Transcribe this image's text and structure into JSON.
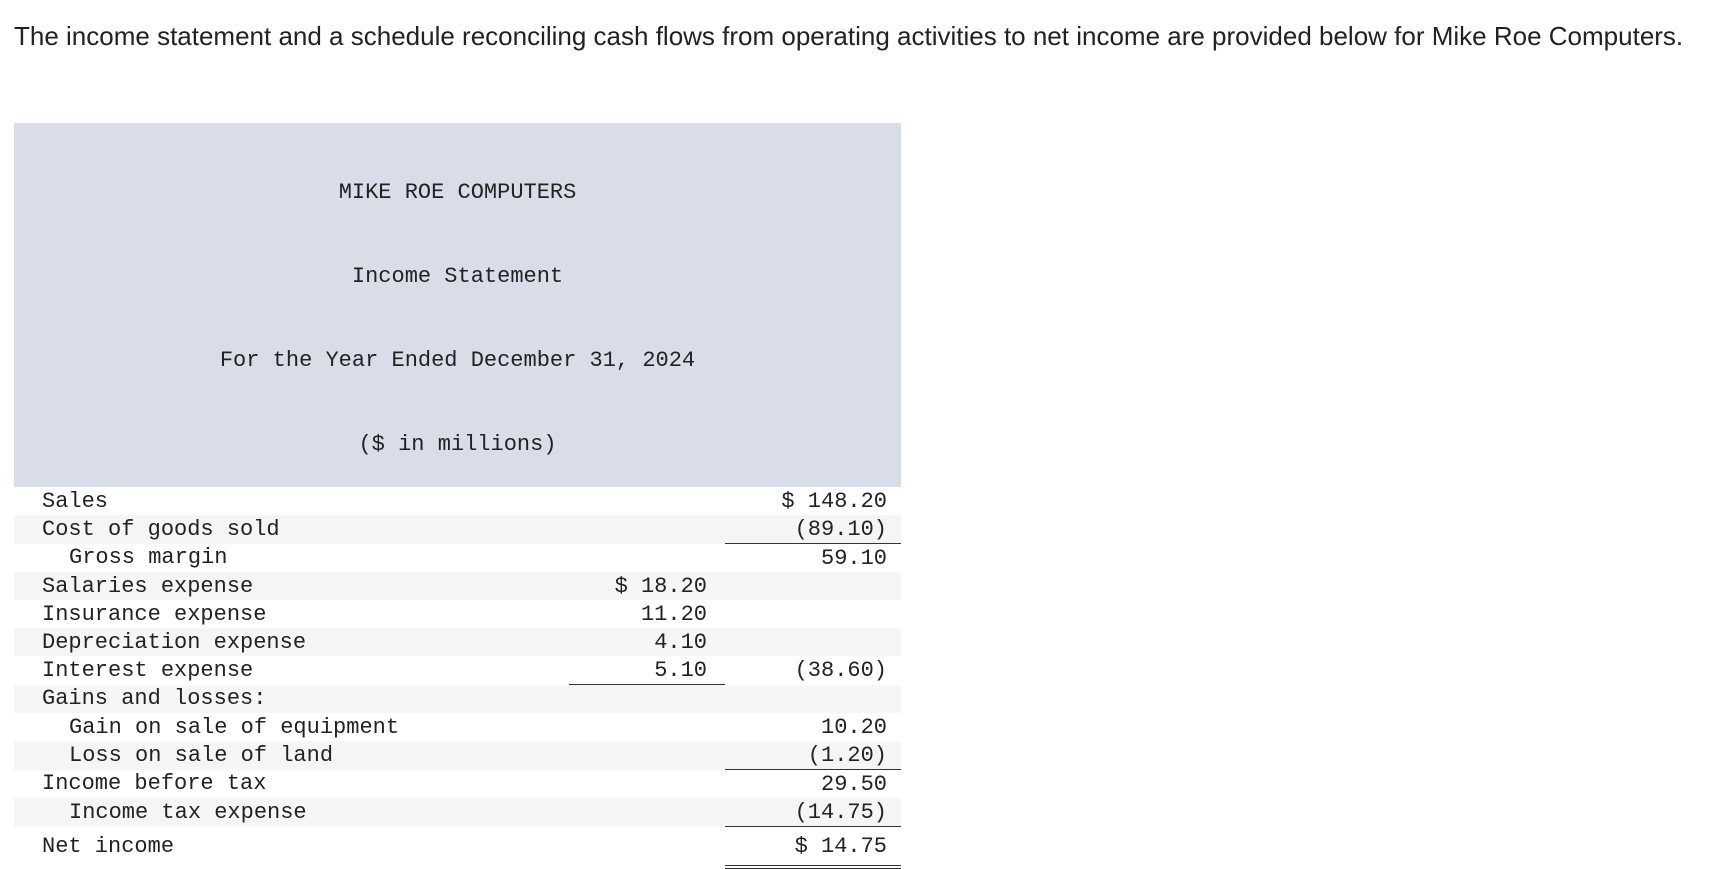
{
  "intro": "The income statement and a schedule reconciling cash flows from operating activities to net income are provided below for Mike Roe Computers.",
  "statement": {
    "header": [
      "MIKE ROE COMPUTERS",
      "Income Statement",
      "For the Year Ended December 31, 2024",
      "($ in millions)"
    ],
    "rows": [
      {
        "label": "Sales",
        "col2": "$ 148.20"
      },
      {
        "label": "Cost of goods sold",
        "col2": "(89.10)"
      },
      {
        "label": "Gross margin",
        "col2": "59.10"
      },
      {
        "label": "Salaries expense",
        "col1": "$ 18.20"
      },
      {
        "label": "Insurance expense",
        "col1": "11.20"
      },
      {
        "label": "Depreciation expense",
        "col1": "4.10"
      },
      {
        "label": "Interest expense",
        "col1": "5.10",
        "col2": "(38.60)"
      },
      {
        "label": "Gains and losses:"
      },
      {
        "label": "Gain on sale of equipment",
        "col2": "10.20"
      },
      {
        "label": "Loss on sale of land",
        "col2": "(1.20)"
      },
      {
        "label": "Income before tax",
        "col2": "29.50"
      },
      {
        "label": "Income tax expense",
        "col2": "(14.75)"
      },
      {
        "label": "Net income",
        "col2": "$ 14.75"
      }
    ]
  }
}
